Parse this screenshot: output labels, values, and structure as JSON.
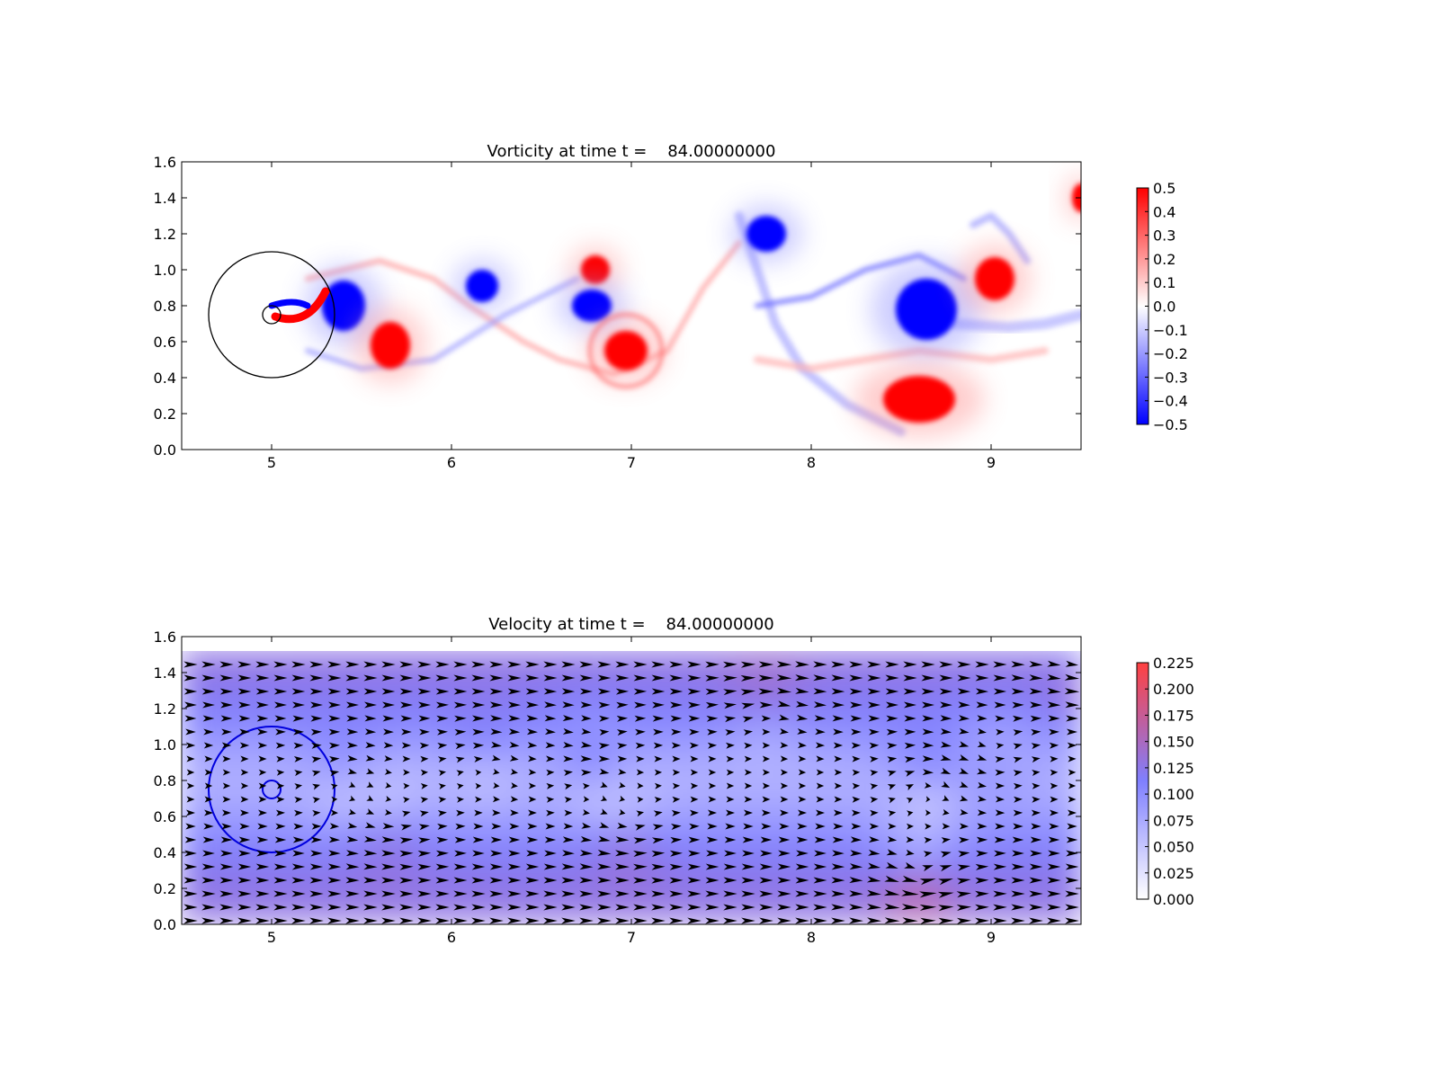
{
  "chart_data": [
    {
      "type": "heatmap",
      "title": "Vorticity at time t =    84.00000000",
      "xlim": [
        4.5,
        9.5
      ],
      "ylim": [
        0.0,
        1.6
      ],
      "xticks": [
        "5",
        "6",
        "7",
        "8",
        "9"
      ],
      "yticks": [
        "0.0",
        "0.2",
        "0.4",
        "0.6",
        "0.8",
        "1.0",
        "1.2",
        "1.4",
        "1.6"
      ],
      "colorbar": {
        "range": [
          -0.5,
          0.5
        ],
        "ticks": [
          "0.5",
          "0.4",
          "0.3",
          "0.2",
          "0.1",
          "0.0",
          "−0.1",
          "−0.2",
          "−0.3",
          "−0.4",
          "−0.5"
        ],
        "colors": [
          "#0000ff",
          "#ffffff",
          "#ff0000"
        ]
      },
      "outline_circles": [
        {
          "cx": 5.0,
          "cy": 0.75,
          "r": 0.35,
          "color": "#000000"
        },
        {
          "cx": 5.0,
          "cy": 0.75,
          "r": 0.05,
          "color": "#000000"
        }
      ],
      "vortices": [
        {
          "x": 5.4,
          "y": 0.8,
          "rx": 0.12,
          "ry": 0.14,
          "sign": -1
        },
        {
          "x": 5.66,
          "y": 0.58,
          "rx": 0.11,
          "ry": 0.13,
          "sign": 1
        },
        {
          "x": 6.17,
          "y": 0.91,
          "rx": 0.09,
          "ry": 0.09,
          "sign": -1
        },
        {
          "x": 6.8,
          "y": 1.0,
          "rx": 0.08,
          "ry": 0.08,
          "sign": 1
        },
        {
          "x": 6.78,
          "y": 0.8,
          "rx": 0.11,
          "ry": 0.09,
          "sign": -1
        },
        {
          "x": 6.97,
          "y": 0.55,
          "rx": 0.12,
          "ry": 0.11,
          "sign": 1
        },
        {
          "x": 7.75,
          "y": 1.2,
          "rx": 0.11,
          "ry": 0.1,
          "sign": -1
        },
        {
          "x": 8.64,
          "y": 0.78,
          "rx": 0.17,
          "ry": 0.17,
          "sign": -1
        },
        {
          "x": 9.02,
          "y": 0.95,
          "rx": 0.11,
          "ry": 0.12,
          "sign": 1
        },
        {
          "x": 8.6,
          "y": 0.28,
          "rx": 0.2,
          "ry": 0.13,
          "sign": 1
        },
        {
          "x": 9.5,
          "y": 1.4,
          "rx": 0.05,
          "ry": 0.08,
          "sign": 1
        }
      ]
    },
    {
      "type": "heatmap",
      "title": "Velocity at time t =    84.00000000",
      "xlim": [
        4.5,
        9.5
      ],
      "ylim": [
        0.0,
        1.6
      ],
      "xticks": [
        "5",
        "6",
        "7",
        "8",
        "9"
      ],
      "yticks": [
        "0.0",
        "0.2",
        "0.4",
        "0.6",
        "0.8",
        "1.0",
        "1.2",
        "1.4",
        "1.6"
      ],
      "colorbar": {
        "range": [
          0.0,
          0.225
        ],
        "ticks": [
          "0.225",
          "0.200",
          "0.175",
          "0.150",
          "0.125",
          "0.100",
          "0.075",
          "0.050",
          "0.025",
          "0.000"
        ],
        "colors": [
          "#ffffff",
          "#7f7fff",
          "#ff4040"
        ]
      },
      "outline_circles": [
        {
          "cx": 5.0,
          "cy": 0.75,
          "r": 0.35,
          "color": "#0000dd"
        },
        {
          "cx": 5.0,
          "cy": 0.75,
          "r": 0.05,
          "color": "#0000dd"
        }
      ],
      "quiver": "velocity arrows"
    }
  ]
}
